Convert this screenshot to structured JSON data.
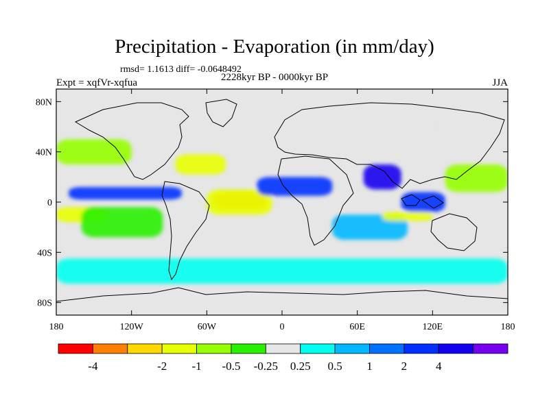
{
  "header": {
    "title": "Precipitation - Evaporation (in mm/day)",
    "stats": "rmsd= 1.1613 diff= -0.0648492",
    "period": "2228kyr BP - 0000kyr BP",
    "experiment": "Expt = xqfVr-xqfua",
    "season": "JJA"
  },
  "chart_data": {
    "type": "heatmap",
    "title": "Precipitation - Evaporation (in mm/day)",
    "subtitle": "2228kyr BP - 0000kyr BP",
    "xlabel": "",
    "ylabel": "",
    "x_ticks": [
      {
        "value": -180,
        "label": "180"
      },
      {
        "value": -120,
        "label": "120W"
      },
      {
        "value": -60,
        "label": "60W"
      },
      {
        "value": 0,
        "label": "0"
      },
      {
        "value": 60,
        "label": "60E"
      },
      {
        "value": 120,
        "label": "120E"
      },
      {
        "value": 180,
        "label": "180"
      }
    ],
    "y_ticks": [
      {
        "value": 80,
        "label": "80N"
      },
      {
        "value": 40,
        "label": "40N"
      },
      {
        "value": 0,
        "label": "0"
      },
      {
        "value": -40,
        "label": "40S"
      },
      {
        "value": -80,
        "label": "80S"
      }
    ],
    "xlim": [
      -180,
      180
    ],
    "ylim": [
      -90,
      90
    ],
    "colorbar": {
      "colors": [
        "#ff0000",
        "#ff8000",
        "#ffd800",
        "#e8ff00",
        "#96ff00",
        "#28f000",
        "#e6e6e6",
        "#00fff0",
        "#00b8ff",
        "#0070ff",
        "#0030ff",
        "#1400f0",
        "#7800f0"
      ],
      "levels": [
        "-4",
        "-2",
        "-1",
        "-0.5",
        "-0.25",
        "0.25",
        "0.5",
        "1",
        "2",
        "4"
      ],
      "level_after_box": [
        1,
        3,
        4,
        5,
        6,
        7,
        8,
        9,
        10,
        11
      ]
    },
    "regions": [
      {
        "desc": "Central tropical Atlantic (strong drying)",
        "lon": [
          -55,
          -12
        ],
        "lat": [
          -6,
          8
        ],
        "value": -4
      },
      {
        "desc": "Tropical Atlantic outer band",
        "lon": [
          -60,
          -8
        ],
        "lat": [
          -10,
          10
        ],
        "value": -2
      },
      {
        "desc": "Eastern tropical Pacific",
        "lon": [
          -180,
          -140
        ],
        "lat": [
          -16,
          -4
        ],
        "value": -2
      },
      {
        "desc": "Southeast Pacific",
        "lon": [
          -160,
          -95
        ],
        "lat": [
          -28,
          -4
        ],
        "value": -0.5
      },
      {
        "desc": "Subtropical North Atlantic",
        "lon": [
          -85,
          -45
        ],
        "lat": [
          22,
          38
        ],
        "value": -2
      },
      {
        "desc": "North Pacific",
        "lon": [
          -180,
          -120
        ],
        "lat": [
          30,
          50
        ],
        "value": -1
      },
      {
        "desc": "Northern Eurasia",
        "lon": [
          15,
          120
        ],
        "lat": [
          45,
          75
        ],
        "value": -0.25
      },
      {
        "desc": "Tropical Pacific band (wetter)",
        "lon": [
          -170,
          -80
        ],
        "lat": [
          2,
          12
        ],
        "value": 2
      },
      {
        "desc": "West Africa / Sahel",
        "lon": [
          -20,
          40
        ],
        "lat": [
          5,
          20
        ],
        "value": 2
      },
      {
        "desc": "Indian monsoon",
        "lon": [
          65,
          95
        ],
        "lat": [
          10,
          30
        ],
        "value": 4
      },
      {
        "desc": "Maritime continent",
        "lon": [
          95,
          130
        ],
        "lat": [
          -8,
          8
        ],
        "value": 2
      },
      {
        "desc": "Southern Indian Ocean",
        "lon": [
          40,
          100
        ],
        "lat": [
          -30,
          -10
        ],
        "value": 0.5
      },
      {
        "desc": "Western Pacific",
        "lon": [
          130,
          180
        ],
        "lat": [
          8,
          30
        ],
        "value": -1
      },
      {
        "desc": "South of Indonesia",
        "lon": [
          80,
          120
        ],
        "lat": [
          -15,
          -8
        ],
        "value": -2
      },
      {
        "desc": "Southern Ocean",
        "lon": [
          -180,
          180
        ],
        "lat": [
          -65,
          -45
        ],
        "value": 0.25
      }
    ]
  }
}
